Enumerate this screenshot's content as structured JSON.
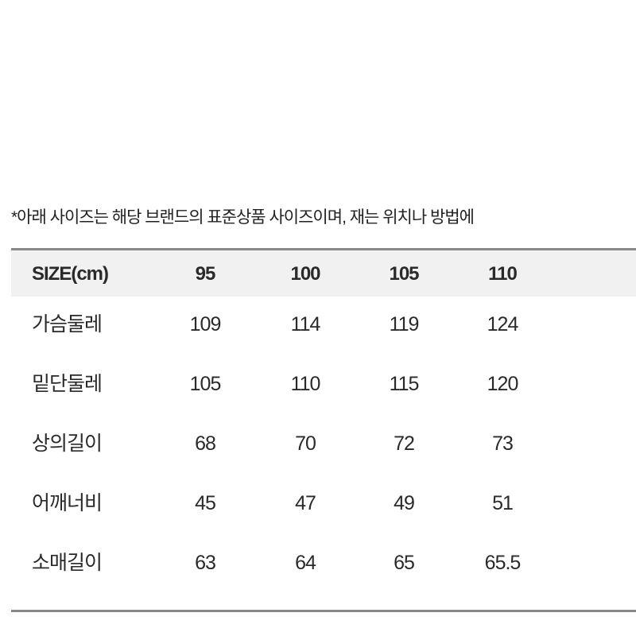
{
  "note": "*아래 사이즈는 해당 브랜드의 표준상품 사이즈이며, 재는 위치나 방법에",
  "table": {
    "header": [
      "SIZE(cm)",
      "95",
      "100",
      "105",
      "110"
    ],
    "rows": [
      [
        "가슴둘레",
        "109",
        "114",
        "119",
        "124"
      ],
      [
        "밑단둘레",
        "105",
        "110",
        "115",
        "120"
      ],
      [
        "상의길이",
        "68",
        "70",
        "72",
        "73"
      ],
      [
        "어깨너비",
        "45",
        "47",
        "49",
        "51"
      ],
      [
        "소매길이",
        "63",
        "64",
        "65",
        "65.5"
      ]
    ]
  }
}
